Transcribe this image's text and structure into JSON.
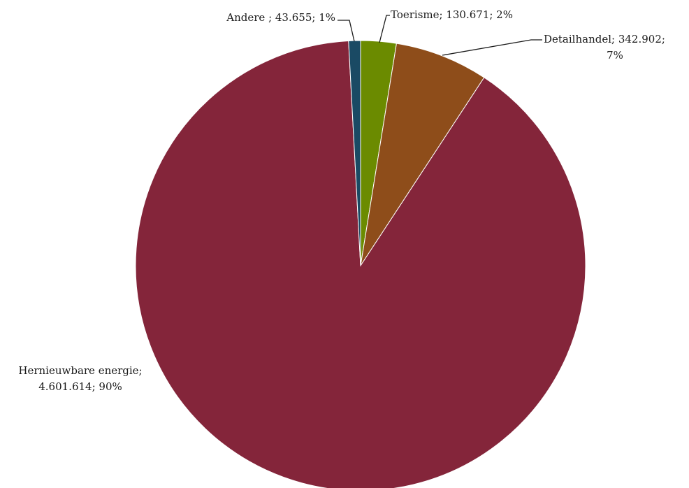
{
  "chart_data": {
    "type": "pie",
    "slices": [
      {
        "name": "Toerisme",
        "value": 130671,
        "value_label": "130.671",
        "percent_label": "2%",
        "color": "#6b8b00"
      },
      {
        "name": "Detailhandel",
        "value": 342902,
        "value_label": "342.902",
        "percent_label": "7%",
        "color": "#8e4d1a"
      },
      {
        "name": "Hernieuwbare energie",
        "value": 4601614,
        "value_label": "4.601.614",
        "percent_label": "90%",
        "color": "#84253a"
      },
      {
        "name": "Andere",
        "value": 43655,
        "value_label": "43.655",
        "percent_label": "1%",
        "color": "#1a4a64"
      }
    ],
    "labels": {
      "toerisme": "Toerisme;  130.671; 2%",
      "detailhandel_line1": "Detailhandel;  342.902;",
      "detailhandel_line2": "7%",
      "hernieuwbaar_line1": "Hernieuwbare energie;",
      "hernieuwbaar_line2": "4.601.614; 90%",
      "andere": "Andere ;  43.655; 1%"
    },
    "legend": "none",
    "title": ""
  }
}
